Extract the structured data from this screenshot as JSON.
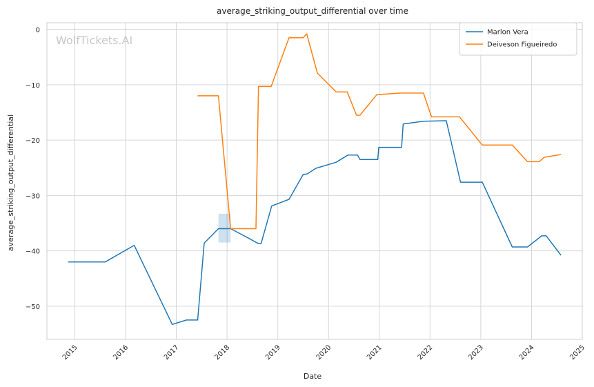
{
  "chart_data": {
    "type": "line",
    "title": "average_striking_output_differential over time",
    "xlabel": "Date",
    "ylabel": "average_striking_output_differential",
    "watermark": "WolfTickets.AI",
    "xlim": [
      2014.45,
      2025.0
    ],
    "ylim": [
      -56,
      1.2
    ],
    "x_ticks": [
      2015,
      2016,
      2017,
      2018,
      2019,
      2020,
      2021,
      2022,
      2023,
      2024,
      2025
    ],
    "y_ticks": [
      0,
      -10,
      -20,
      -30,
      -40,
      -50
    ],
    "grid": true,
    "legend_position": "top-right",
    "series": [
      {
        "name": "Marlon Vera",
        "color": "#1f77b4",
        "points": [
          [
            2014.87,
            -42.0
          ],
          [
            2015.6,
            -42.0
          ],
          [
            2016.17,
            -39.0
          ],
          [
            2016.92,
            -53.3
          ],
          [
            2017.2,
            -52.5
          ],
          [
            2017.42,
            -52.5
          ],
          [
            2017.55,
            -38.6
          ],
          [
            2017.83,
            -36.0
          ],
          [
            2018.07,
            -36.0
          ],
          [
            2018.4,
            -37.6
          ],
          [
            2018.62,
            -38.7
          ],
          [
            2018.67,
            -38.7
          ],
          [
            2018.88,
            -31.9
          ],
          [
            2019.22,
            -30.7
          ],
          [
            2019.5,
            -26.2
          ],
          [
            2019.58,
            -26.1
          ],
          [
            2019.75,
            -25.1
          ],
          [
            2020.15,
            -24.0
          ],
          [
            2020.38,
            -22.7
          ],
          [
            2020.57,
            -22.7
          ],
          [
            2020.62,
            -23.5
          ],
          [
            2020.97,
            -23.5
          ],
          [
            2020.99,
            -21.3
          ],
          [
            2021.44,
            -21.3
          ],
          [
            2021.47,
            -17.1
          ],
          [
            2021.87,
            -16.6
          ],
          [
            2022.32,
            -16.5
          ],
          [
            2022.6,
            -27.6
          ],
          [
            2023.03,
            -27.6
          ],
          [
            2023.62,
            -39.3
          ],
          [
            2023.92,
            -39.3
          ],
          [
            2024.2,
            -37.3
          ],
          [
            2024.29,
            -37.3
          ],
          [
            2024.58,
            -40.8
          ]
        ]
      },
      {
        "name": "Deiveson Figueiredo",
        "color": "#ff7f0e",
        "points": [
          [
            2017.42,
            -12.0
          ],
          [
            2017.83,
            -12.0
          ],
          [
            2018.07,
            -36.0
          ],
          [
            2018.57,
            -36.0
          ],
          [
            2018.62,
            -10.3
          ],
          [
            2018.87,
            -10.3
          ],
          [
            2019.22,
            -1.5
          ],
          [
            2019.5,
            -1.5
          ],
          [
            2019.57,
            -0.8
          ],
          [
            2019.78,
            -7.9
          ],
          [
            2020.15,
            -11.3
          ],
          [
            2020.37,
            -11.3
          ],
          [
            2020.55,
            -15.5
          ],
          [
            2020.62,
            -15.5
          ],
          [
            2020.95,
            -11.8
          ],
          [
            2021.42,
            -11.5
          ],
          [
            2021.87,
            -11.5
          ],
          [
            2022.03,
            -15.8
          ],
          [
            2022.58,
            -15.8
          ],
          [
            2023.03,
            -20.9
          ],
          [
            2023.62,
            -20.9
          ],
          [
            2023.92,
            -23.9
          ],
          [
            2024.15,
            -23.9
          ],
          [
            2024.25,
            -23.1
          ],
          [
            2024.58,
            -22.6
          ]
        ]
      }
    ],
    "bands": [
      {
        "series": "Marlon Vera",
        "x": [
          2017.83,
          2018.07
        ],
        "y": [
          -38.5,
          -33.3
        ],
        "color": "#1f77b4"
      }
    ]
  }
}
